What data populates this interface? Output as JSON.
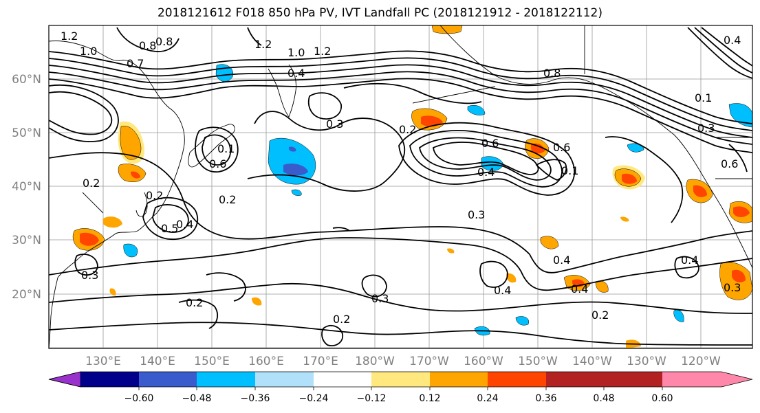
{
  "title": "2018121612 F018 850 hPa PV, IVT Landfall PC (2018121912 - 2018122112)",
  "lat_labels": [
    "60°N",
    "50°N",
    "40°N",
    "30°N",
    "20°N"
  ],
  "lon_labels": [
    "130°E",
    "140°E",
    "150°E",
    "160°E",
    "170°E",
    "180°W",
    "170°W",
    "160°W",
    "150°W",
    "140°W",
    "130°W",
    "120°W"
  ],
  "colorbar": {
    "ticks": [
      "−0.60",
      "−0.48",
      "−0.36",
      "−0.24",
      "−0.12",
      "0.12",
      "0.24",
      "0.36",
      "0.48",
      "0.60"
    ],
    "colors": [
      "#9932cc",
      "#00008b",
      "#3a5bcc",
      "#00bfff",
      "#b0e0fa",
      "#ffffff",
      "#ffe97f",
      "#ffa500",
      "#ff4500",
      "#b22222",
      "#ff88aa"
    ]
  },
  "contour_labels": [
    "1.2",
    "1.0",
    "0.8",
    "0.7",
    "0.8",
    "1.2",
    "1.0",
    "1.2",
    "0.4",
    "0.8",
    "0.3",
    "0.2",
    "0.6",
    "0.6",
    "0.4",
    "0.6",
    "0.1",
    "0.1",
    "0.6",
    "0.2",
    "0.2",
    "0.5",
    "0.4",
    "0.3",
    "0.3",
    "0.2",
    "0.2",
    "0.3",
    "0.4",
    "0.4",
    "0.4",
    "0.2",
    "0.4",
    "0.3",
    "0.1",
    "0.4",
    "0.2",
    "0.3"
  ],
  "shade_colors": {
    "blue": "#00bfff",
    "dark_blue": "#3a5bcc",
    "yellow": "#ffe97f",
    "orange": "#ffa500",
    "red": "#ff4500"
  }
}
